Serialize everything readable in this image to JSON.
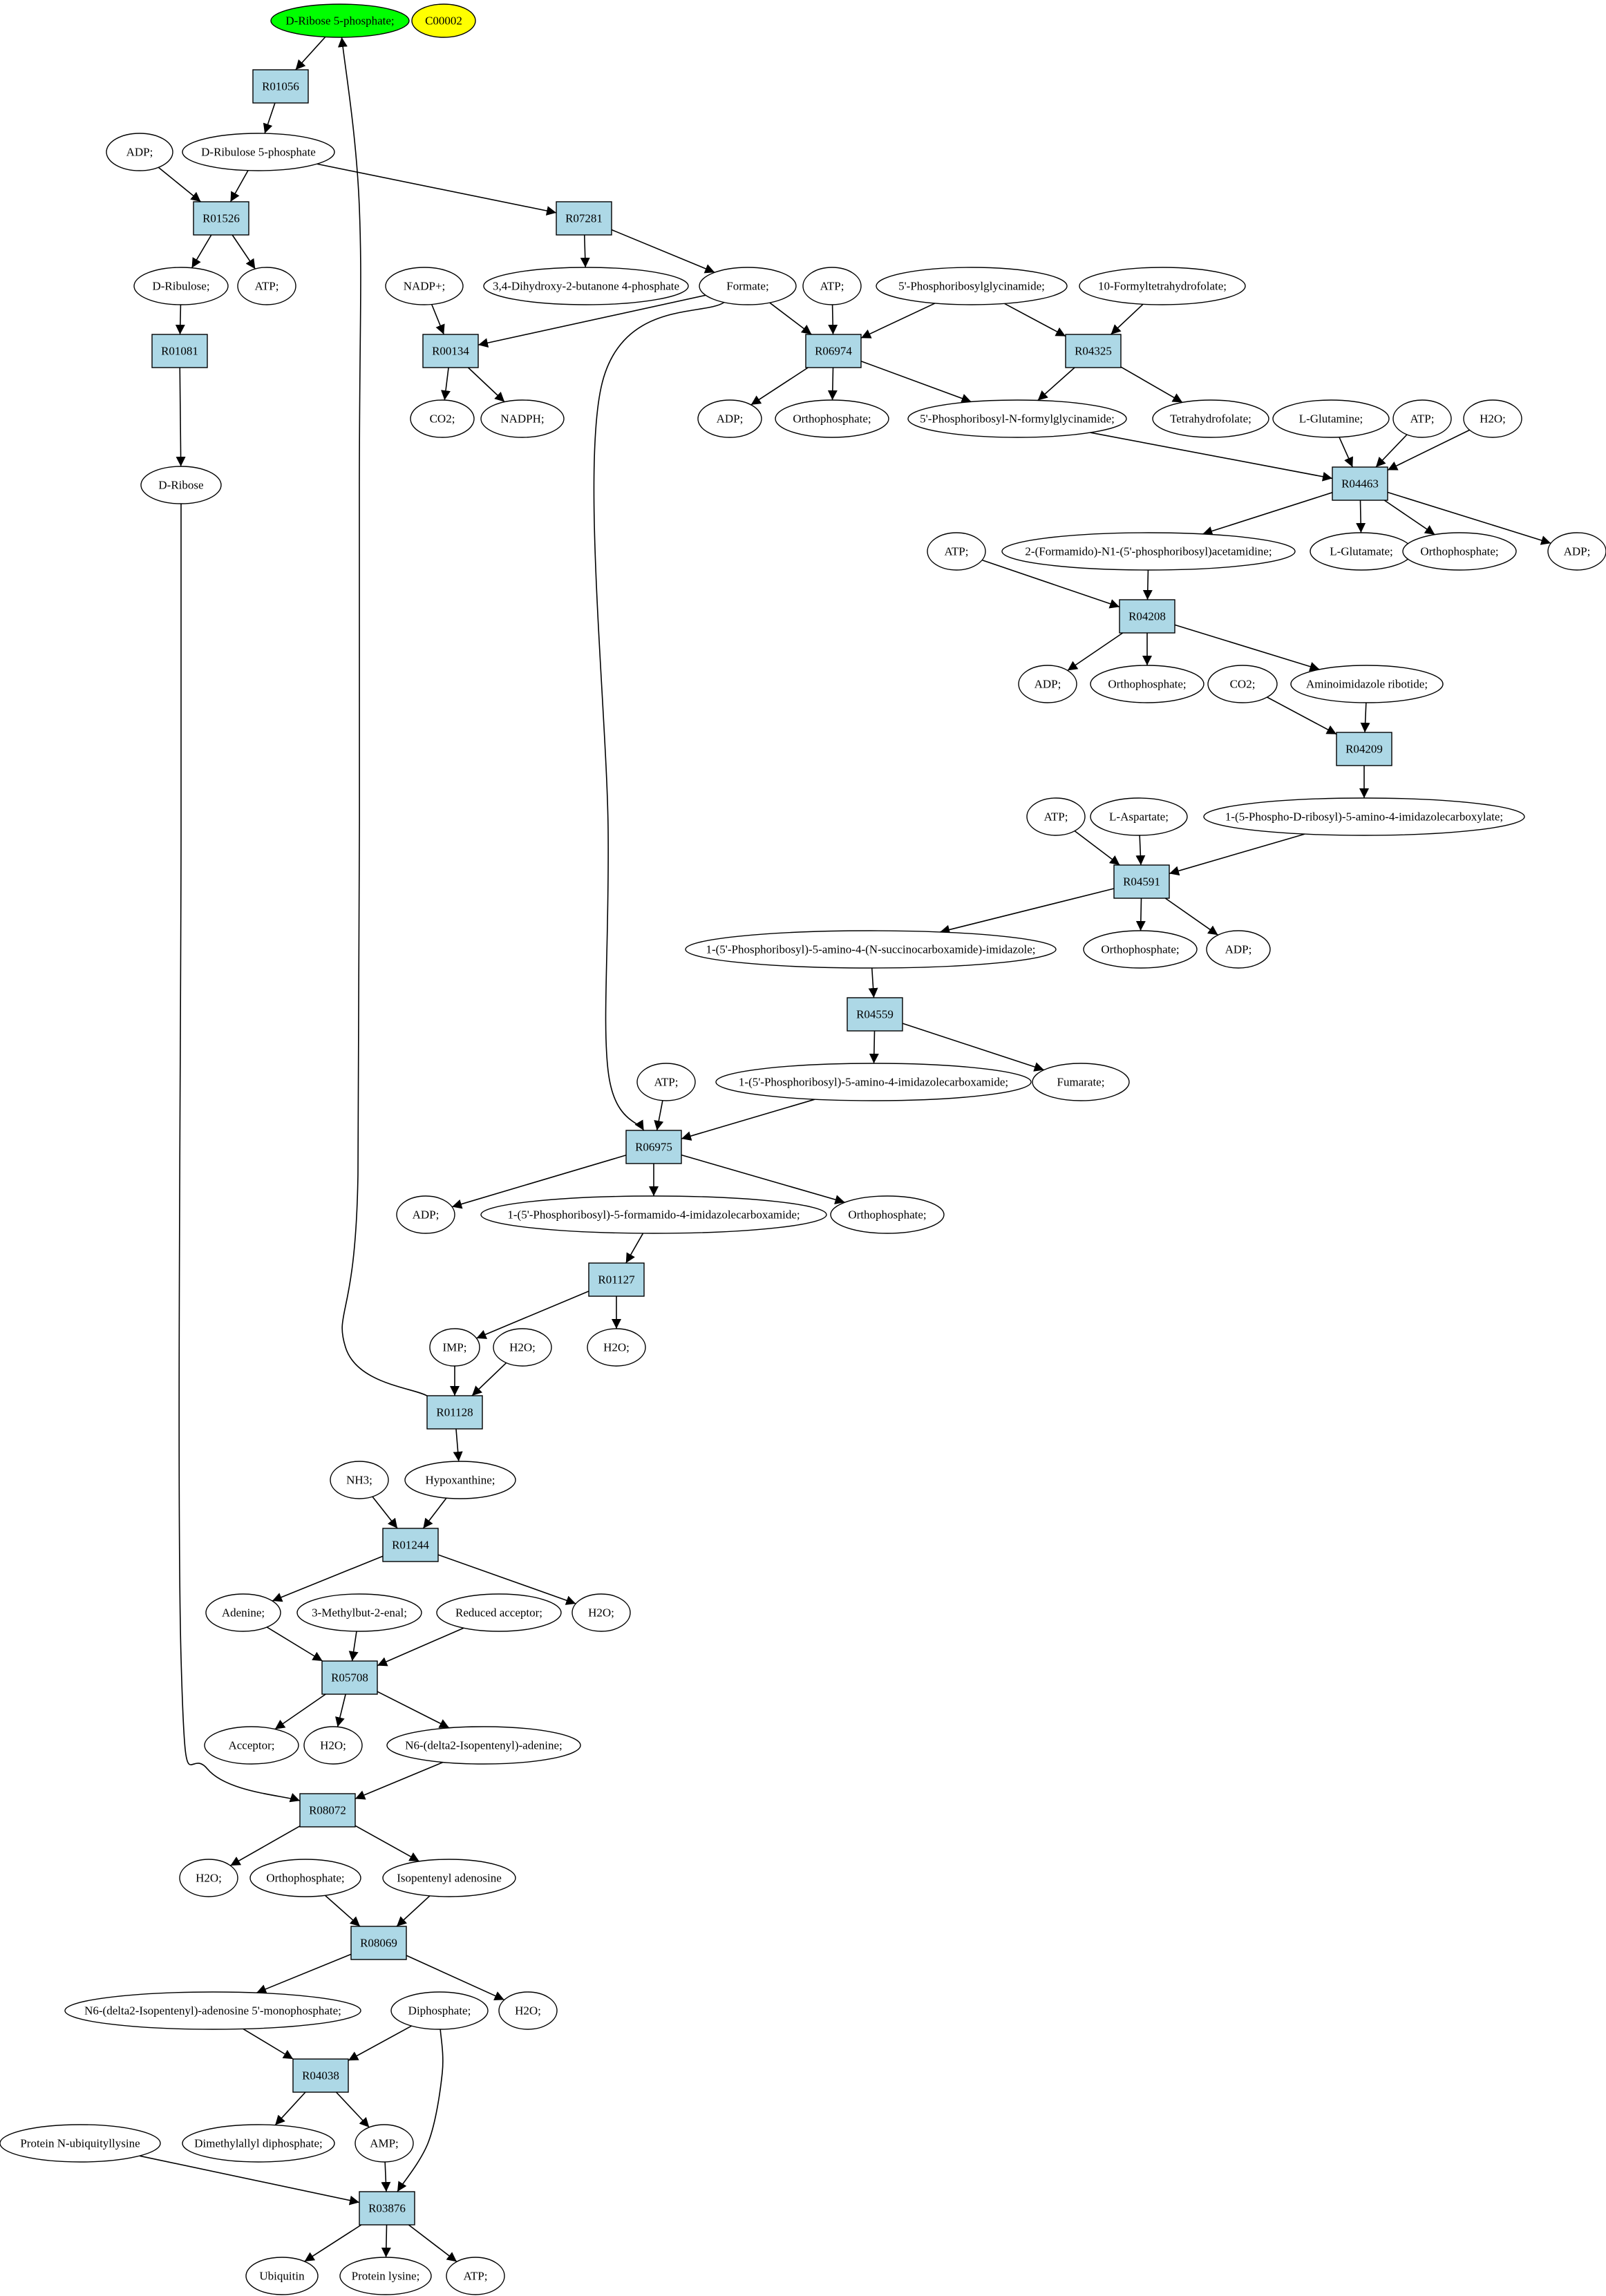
{
  "colors": {
    "reaction_fill": "#add8e6",
    "start_fill": "#00ff00",
    "compound_id_fill": "#ffff00",
    "node_fill": "#ffffff",
    "stroke": "#000000"
  },
  "legend": {
    "start_label": "D-Ribose 5-phosphate;",
    "compound_id_label": "C00002"
  },
  "reactions": [
    "R01056",
    "R01526",
    "R07281",
    "R01081",
    "R00134",
    "R06974",
    "R04325",
    "R04463",
    "R04208",
    "R04209",
    "R04591",
    "R04559",
    "R06975",
    "R01127",
    "R01128",
    "R01244",
    "R05708",
    "R08072",
    "R08069",
    "R04038",
    "R03876"
  ],
  "compounds": [
    "ADP;",
    "D-Ribulose 5-phosphate",
    "D-Ribulose;",
    "ATP;",
    "D-Ribose",
    "3,4-Dihydroxy-2-butanone 4-phosphate",
    "NADP+;",
    "Formate;",
    "ATP;",
    "5'-Phosphoribosylglycinamide;",
    "10-Formyltetrahydrofolate;",
    "CO2;",
    "NADPH;",
    "ADP;",
    "Orthophosphate;",
    "5'-Phosphoribosyl-N-formylglycinamide;",
    "Tetrahydrofolate;",
    "L-Glutamine;",
    "ATP;",
    "H2O;",
    "ATP;",
    "2-(Formamido)-N1-(5'-phosphoribosyl)acetamidine;",
    "L-Glutamate;",
    "Orthophosphate;",
    "ADP;",
    "ADP;",
    "Orthophosphate;",
    "CO2;",
    "Aminoimidazole ribotide;",
    "ATP;",
    "L-Aspartate;",
    "1-(5-Phospho-D-ribosyl)-5-amino-4-imidazolecarboxylate;",
    "1-(5'-Phosphoribosyl)-5-amino-4-(N-succinocarboxamide)-imidazole;",
    "Orthophosphate;",
    "ADP;",
    "ATP;",
    "1-(5'-Phosphoribosyl)-5-amino-4-imidazolecarboxamide;",
    "Fumarate;",
    "ADP;",
    "1-(5'-Phosphoribosyl)-5-formamido-4-imidazolecarboxamide;",
    "Orthophosphate;",
    "IMP;",
    "H2O;",
    "H2O;",
    "NH3;",
    "Hypoxanthine;",
    "Adenine;",
    "3-Methylbut-2-enal;",
    "Reduced acceptor;",
    "H2O;",
    "Acceptor;",
    "H2O;",
    "N6-(delta2-Isopentenyl)-adenine;",
    "H2O;",
    "Orthophosphate;",
    "Isopentenyl adenosine",
    "N6-(delta2-Isopentenyl)-adenosine 5'-monophosphate;",
    "Diphosphate;",
    "H2O;",
    "Protein N-ubiquityllysine",
    "Dimethylallyl diphosphate;",
    "AMP;",
    "Ubiquitin",
    "Protein lysine;",
    "ATP;"
  ]
}
